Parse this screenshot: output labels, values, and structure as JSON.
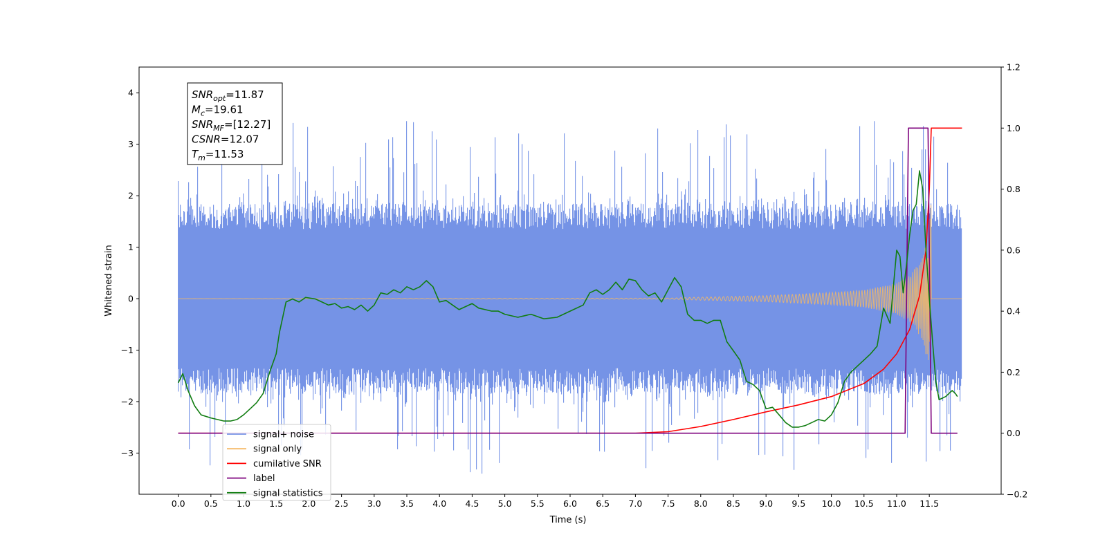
{
  "chart_data": {
    "type": "line",
    "xlabel": "Time (s)",
    "ylabel_left": "Whitened strain",
    "ylabel_right": "",
    "xlim": [
      -0.6,
      12.6
    ],
    "ylim_left": [
      -3.8,
      4.5
    ],
    "ylim_right": [
      -0.2,
      1.2
    ],
    "x_ticks": [
      "0.0",
      "0.5",
      "1.0",
      "1.5",
      "2.0",
      "2.5",
      "3.0",
      "3.5",
      "4.0",
      "4.5",
      "5.0",
      "5.5",
      "6.0",
      "6.5",
      "7.0",
      "7.5",
      "8.0",
      "8.5",
      "9.0",
      "9.5",
      "10.0",
      "10.5",
      "11.0",
      "11.5"
    ],
    "y_ticks_left": [
      "−3",
      "−2",
      "−1",
      "0",
      "1",
      "2",
      "3",
      "4"
    ],
    "y_ticks_right": [
      "−0.2",
      "0.0",
      "0.2",
      "0.4",
      "0.6",
      "0.8",
      "1.0",
      "1.2"
    ],
    "grid": false,
    "legend_position": "lower-left",
    "annotation": {
      "lines": [
        {
          "name": "SNR",
          "sub": "opt",
          "value": "=11.87"
        },
        {
          "name": "M",
          "sub": "c",
          "value": "=19.61"
        },
        {
          "name": "SNR",
          "sub": "MF",
          "value": "=[12.27]"
        },
        {
          "name": "CSNR",
          "sub": "",
          "value": "=12.07"
        },
        {
          "name": "T",
          "sub": "m",
          "value": "=11.53"
        }
      ]
    },
    "series": [
      {
        "name": "signal+ noise",
        "color": "#7593e6",
        "axis": "left",
        "kind": "noise_band",
        "x_range": [
          0.0,
          12.0
        ],
        "envelope_mean": 1.35,
        "peak_range": [
          -3.4,
          3.45
        ]
      },
      {
        "name": "signal only",
        "color": "#f5b964",
        "axis": "left",
        "kind": "chirp",
        "envelope": {
          "x": [
            0,
            7.5,
            8.0,
            9.0,
            10.0,
            10.5,
            11.0,
            11.2,
            11.4,
            11.5,
            11.53,
            12.0
          ],
          "y": [
            0.0,
            0.01,
            0.03,
            0.06,
            0.12,
            0.17,
            0.3,
            0.45,
            0.8,
            1.4,
            1.9,
            0.0
          ]
        }
      },
      {
        "name": "cumilative SNR",
        "color": "#ff0000",
        "axis": "right",
        "x": [
          0,
          7.0,
          7.5,
          8.0,
          8.5,
          9.0,
          9.5,
          10.0,
          10.5,
          10.8,
          11.0,
          11.2,
          11.35,
          11.45,
          11.5,
          11.53,
          12.0
        ],
        "y": [
          0.0,
          0.0,
          0.005,
          0.022,
          0.045,
          0.07,
          0.093,
          0.12,
          0.163,
          0.21,
          0.26,
          0.34,
          0.45,
          0.6,
          0.8,
          1.0,
          1.0
        ]
      },
      {
        "name": "label",
        "color": "#7d007d",
        "axis": "right",
        "x": [
          0,
          11.13,
          11.18,
          11.48,
          11.53,
          11.93
        ],
        "y": [
          0.0,
          0.0,
          1.0,
          1.0,
          0.0,
          0.0
        ]
      },
      {
        "name": "signal statistics",
        "color": "#117d11",
        "axis": "right",
        "x": [
          0.0,
          0.07,
          0.15,
          0.25,
          0.35,
          0.5,
          0.6,
          0.7,
          0.8,
          0.9,
          1.0,
          1.1,
          1.2,
          1.3,
          1.4,
          1.5,
          1.55,
          1.65,
          1.75,
          1.85,
          1.95,
          2.1,
          2.2,
          2.3,
          2.4,
          2.5,
          2.6,
          2.7,
          2.8,
          2.9,
          3.0,
          3.1,
          3.2,
          3.3,
          3.4,
          3.5,
          3.6,
          3.7,
          3.8,
          3.9,
          4.0,
          4.1,
          4.2,
          4.3,
          4.4,
          4.5,
          4.6,
          4.7,
          4.8,
          4.9,
          5.0,
          5.2,
          5.4,
          5.6,
          5.8,
          6.0,
          6.2,
          6.3,
          6.4,
          6.5,
          6.6,
          6.7,
          6.8,
          6.9,
          7.0,
          7.1,
          7.2,
          7.3,
          7.4,
          7.5,
          7.6,
          7.7,
          7.8,
          7.9,
          8.0,
          8.1,
          8.2,
          8.3,
          8.4,
          8.5,
          8.6,
          8.7,
          8.8,
          8.9,
          9.0,
          9.1,
          9.2,
          9.3,
          9.4,
          9.5,
          9.6,
          9.7,
          9.8,
          9.9,
          10.0,
          10.1,
          10.2,
          10.3,
          10.4,
          10.5,
          10.6,
          10.7,
          10.8,
          10.9,
          11.0,
          11.05,
          11.1,
          11.15,
          11.2,
          11.25,
          11.3,
          11.35,
          11.4,
          11.45,
          11.5,
          11.55,
          11.6,
          11.65,
          11.7,
          11.75,
          11.8,
          11.85,
          11.9,
          11.93
        ],
        "y": [
          0.165,
          0.195,
          0.14,
          0.09,
          0.06,
          0.05,
          0.045,
          0.04,
          0.04,
          0.045,
          0.06,
          0.08,
          0.1,
          0.13,
          0.2,
          0.26,
          0.33,
          0.43,
          0.44,
          0.43,
          0.445,
          0.44,
          0.43,
          0.42,
          0.425,
          0.41,
          0.415,
          0.405,
          0.42,
          0.4,
          0.42,
          0.46,
          0.455,
          0.47,
          0.46,
          0.48,
          0.47,
          0.48,
          0.5,
          0.48,
          0.43,
          0.435,
          0.42,
          0.405,
          0.415,
          0.425,
          0.41,
          0.405,
          0.4,
          0.4,
          0.39,
          0.38,
          0.39,
          0.375,
          0.38,
          0.4,
          0.42,
          0.46,
          0.47,
          0.455,
          0.47,
          0.495,
          0.47,
          0.505,
          0.5,
          0.47,
          0.45,
          0.46,
          0.43,
          0.47,
          0.51,
          0.48,
          0.39,
          0.37,
          0.37,
          0.36,
          0.37,
          0.37,
          0.3,
          0.27,
          0.24,
          0.17,
          0.16,
          0.14,
          0.08,
          0.085,
          0.06,
          0.035,
          0.02,
          0.02,
          0.025,
          0.035,
          0.045,
          0.04,
          0.06,
          0.1,
          0.17,
          0.2,
          0.22,
          0.24,
          0.26,
          0.285,
          0.41,
          0.36,
          0.6,
          0.58,
          0.46,
          0.55,
          0.65,
          0.73,
          0.75,
          0.86,
          0.8,
          0.6,
          0.44,
          0.3,
          0.17,
          0.11,
          0.115,
          0.12,
          0.13,
          0.14,
          0.13,
          0.12
        ]
      }
    ]
  }
}
